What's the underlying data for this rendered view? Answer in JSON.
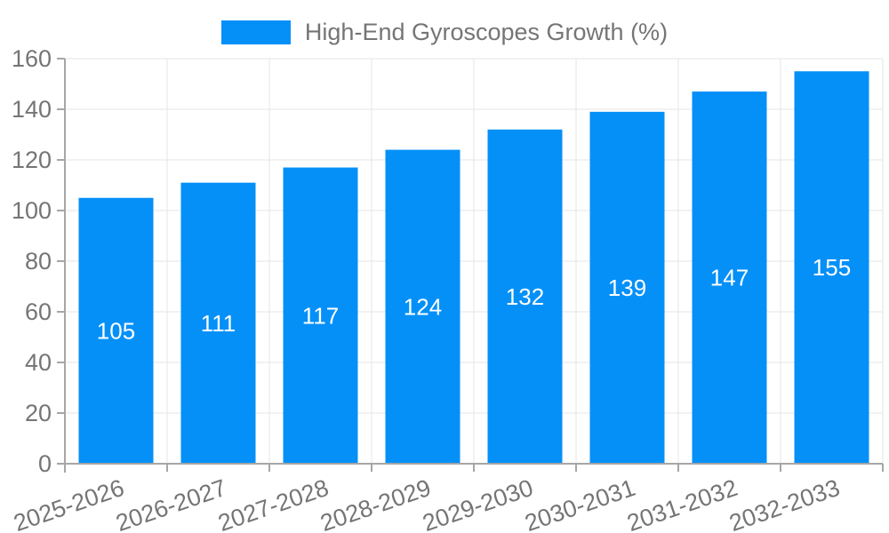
{
  "chart_data": {
    "type": "bar",
    "title": "High-End Gyroscopes Growth (%)",
    "categories": [
      "2025-2026",
      "2026-2027",
      "2027-2028",
      "2028-2029",
      "2029-2030",
      "2030-2031",
      "2031-2032",
      "2032-2033"
    ],
    "values": [
      105,
      111,
      117,
      124,
      132,
      139,
      147,
      155
    ],
    "yticks": [
      0,
      20,
      40,
      60,
      80,
      100,
      120,
      140,
      160
    ],
    "ylim": [
      0,
      160
    ],
    "xlabel": "",
    "ylabel": "",
    "legend_position": "top",
    "grid": true,
    "bar_labels_inside": true,
    "colors": {
      "bar": "#0590f8",
      "bar_label": "#ffffff",
      "grid": "#e6e6e6",
      "axis": "#a6a6a6",
      "text": "#757575"
    }
  }
}
